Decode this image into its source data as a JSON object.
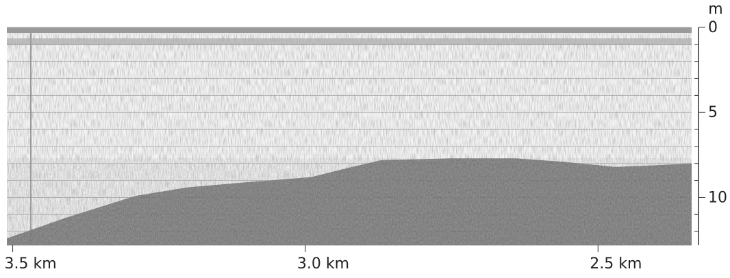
{
  "chart_data": {
    "type": "echogram",
    "y_axis_label": "m",
    "x": [
      3.51,
      3.41,
      3.29,
      3.2,
      3.1,
      2.99,
      2.92,
      2.87,
      2.75,
      2.64,
      2.56,
      2.47,
      2.4,
      2.34
    ],
    "values": [
      12.4,
      11.2,
      9.9,
      9.4,
      9.1,
      8.8,
      8.2,
      7.8,
      7.7,
      7.7,
      7.9,
      8.2,
      8.1,
      8.0
    ],
    "color": "#6e6e6e",
    "xlim": [
      3.51,
      2.34
    ],
    "xticks": [
      {
        "value": 3.5,
        "label": "3.5 km"
      },
      {
        "value": 3.0,
        "label": "3.0 km"
      },
      {
        "value": 2.5,
        "label": "2.5 km"
      }
    ],
    "ylim": [
      0,
      12.8
    ],
    "yticks": [
      0,
      5,
      10
    ],
    "minor_yticks": [
      1,
      2,
      3,
      4,
      6,
      7,
      8,
      9,
      11,
      12
    ],
    "grid": true
  }
}
